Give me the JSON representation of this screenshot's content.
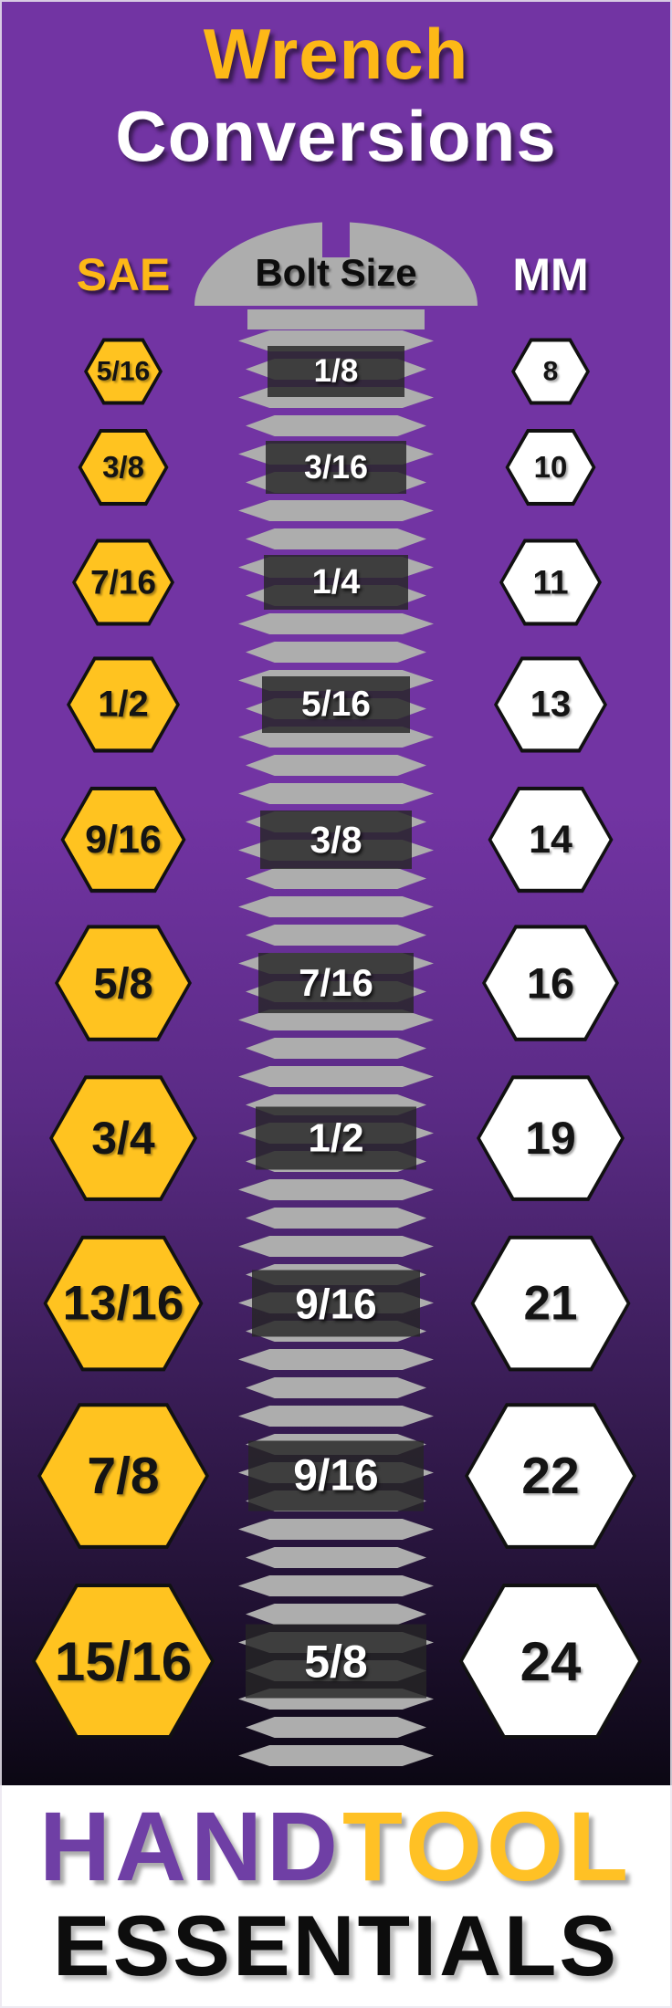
{
  "title": {
    "line1": "Wrench",
    "line2": "Conversions"
  },
  "header": {
    "sae_label": "SAE",
    "bolt_label": "Bolt Size",
    "mm_label": "MM"
  },
  "rows": [
    {
      "sae": "5/16",
      "bolt_size": "1/8",
      "mm": "8"
    },
    {
      "sae": "3/8",
      "bolt_size": "3/16",
      "mm": "10"
    },
    {
      "sae": "7/16",
      "bolt_size": "1/4",
      "mm": "11"
    },
    {
      "sae": "1/2",
      "bolt_size": "5/16",
      "mm": "13"
    },
    {
      "sae": "9/16",
      "bolt_size": "3/8",
      "mm": "14"
    },
    {
      "sae": "5/8",
      "bolt_size": "7/16",
      "mm": "16"
    },
    {
      "sae": "3/4",
      "bolt_size": "1/2",
      "mm": "19"
    },
    {
      "sae": "13/16",
      "bolt_size": "9/16",
      "mm": "21"
    },
    {
      "sae": "7/8",
      "bolt_size": "9/16",
      "mm": "22"
    },
    {
      "sae": "15/16",
      "bolt_size": "5/8",
      "mm": "24"
    }
  ],
  "footer": {
    "brand_hand": "HAND",
    "brand_tool": "TOOL",
    "brand_essentials": "ESSENTIALS"
  },
  "colors": {
    "background_purple": "#7234A3",
    "accent_gold": "#FDB817",
    "hexagon_gold": "#FFC320",
    "bolt_gray": "#ADADAD",
    "label_box_dark": "rgba(38,38,38,0.82)",
    "brand_purple": "#6F3FA5",
    "brand_gold": "#FFC125",
    "footer_white": "#FFFFFF"
  },
  "chart_data": {
    "type": "table",
    "title": "Wrench Conversions",
    "columns": [
      "SAE",
      "Bolt Size",
      "MM"
    ],
    "rows": [
      [
        "5/16",
        "1/8",
        "8"
      ],
      [
        "3/8",
        "3/16",
        "10"
      ],
      [
        "7/16",
        "1/4",
        "11"
      ],
      [
        "1/2",
        "5/16",
        "13"
      ],
      [
        "9/16",
        "3/8",
        "14"
      ],
      [
        "5/8",
        "7/16",
        "16"
      ],
      [
        "3/4",
        "1/2",
        "19"
      ],
      [
        "13/16",
        "9/16",
        "21"
      ],
      [
        "7/8",
        "9/16",
        "22"
      ],
      [
        "15/16",
        "5/8",
        "24"
      ]
    ]
  }
}
